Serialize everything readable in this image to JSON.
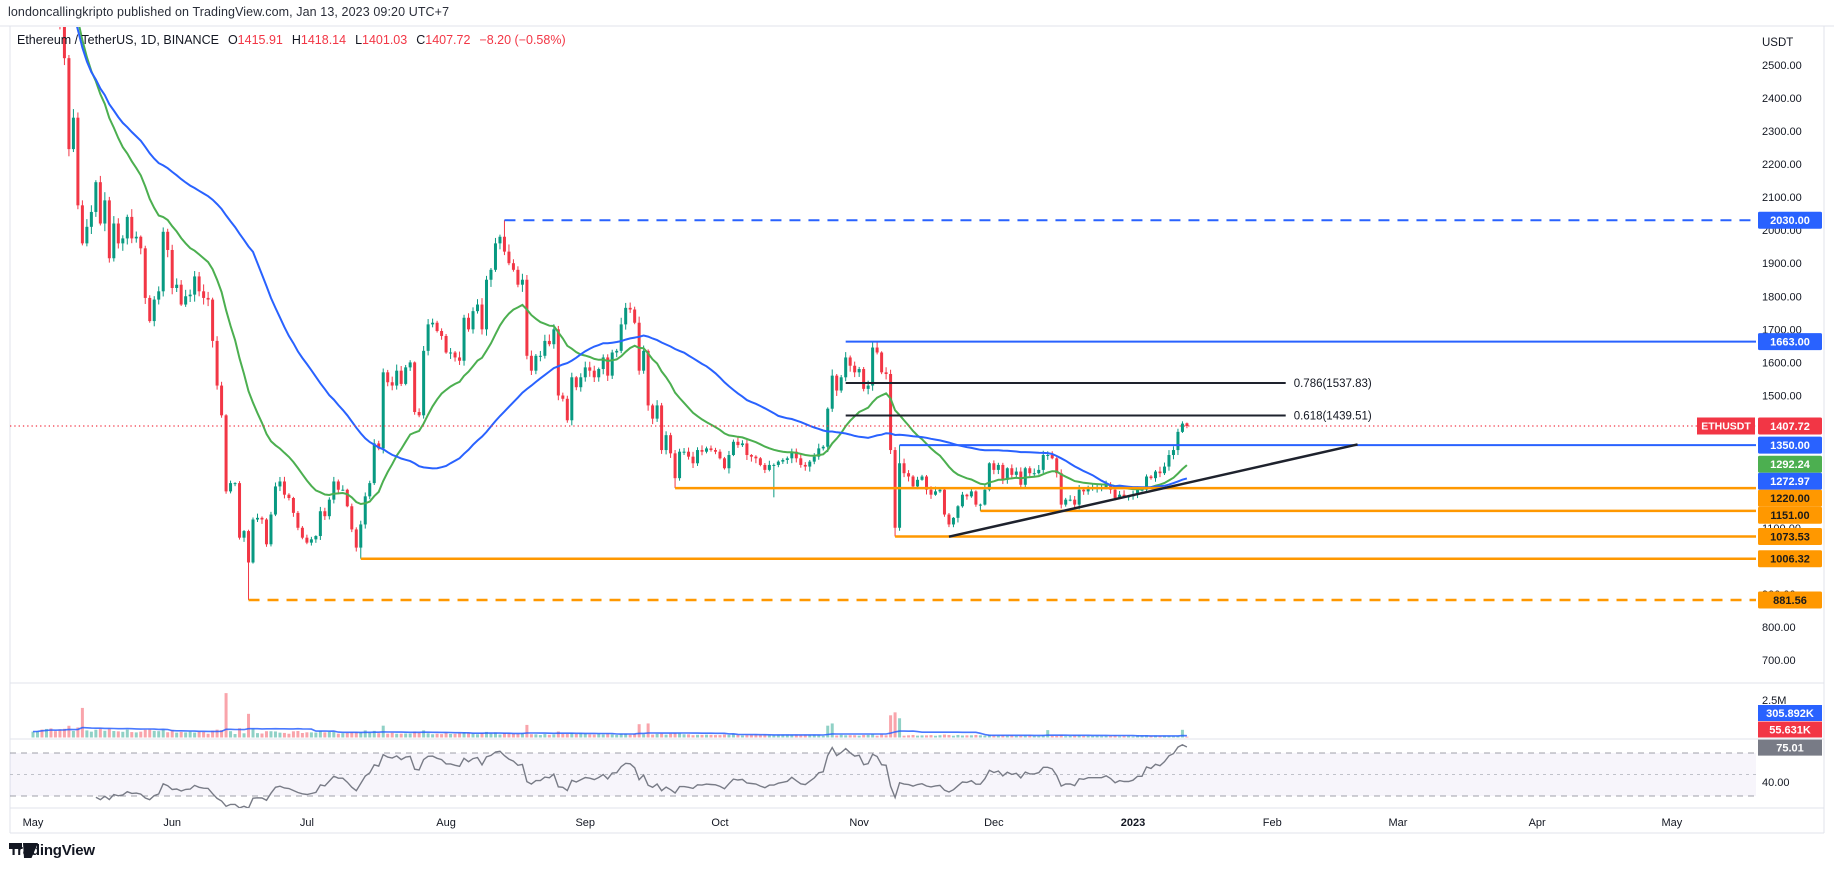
{
  "page": {
    "publisher_line": "londoncallingkripto published on TradingView.com, Jan 13, 2023 09:20 UTC+7",
    "footer_logo_text": "TradingView"
  },
  "legend": {
    "symbol_line": "Ethereum / TetherUS, 1D, BINANCE",
    "o_label": "O",
    "o_value": "1415.91",
    "h_label": "H",
    "h_value": "1418.14",
    "l_label": "L",
    "l_value": "1401.03",
    "c_label": "C",
    "c_value": "1407.72",
    "change_value": "−8.20 (−0.58%)"
  },
  "colors": {
    "up": "#089981",
    "down": "#f23645",
    "ma_fast": "#4caf50",
    "ma_slow": "#2962ff",
    "volume_ma": "#2962ff",
    "ray_blue": "#2962ff",
    "ray_orange": "#ff9800",
    "drawing_black": "#1e222d",
    "price_line": "#f23645",
    "axis_text": "#131722",
    "divider": "#e0e3eb",
    "rsi_line": "#787b86",
    "rsi_band": "#7e57c2",
    "rsi_label_bg": "#787b86"
  },
  "price_axis": {
    "currency": "USDT",
    "tick_min": 700,
    "tick_max": 2500,
    "tick_step": 100,
    "labels": [
      {
        "text": "2030.00",
        "price": 2030.0,
        "bg": "#2962ff",
        "fg": "#ffffff"
      },
      {
        "text": "1663.00",
        "price": 1663.0,
        "bg": "#2962ff",
        "fg": "#ffffff"
      },
      {
        "text": "1407.72",
        "price": 1407.72,
        "bg": "#f23645",
        "fg": "#ffffff",
        "tag": "ETHUSDT"
      },
      {
        "text": "1350.00",
        "price": 1350.0,
        "bg": "#2962ff",
        "fg": "#ffffff"
      },
      {
        "text": "1292.24",
        "price": 1292.24,
        "bg": "#4caf50",
        "fg": "#ffffff"
      },
      {
        "text": "1272.97",
        "price": 1272.97,
        "bg": "#2962ff",
        "fg": "#ffffff"
      },
      {
        "text": "1220.00",
        "price": 1220.0,
        "bg": "#ff9800",
        "fg": "#1b1b1b"
      },
      {
        "text": "1151.00",
        "price": 1151.0,
        "bg": "#ff9800",
        "fg": "#1b1b1b"
      },
      {
        "text": "1073.53",
        "price": 1073.53,
        "bg": "#ff9800",
        "fg": "#1b1b1b"
      },
      {
        "text": "1006.32",
        "price": 1006.32,
        "bg": "#ff9800",
        "fg": "#1b1b1b"
      },
      {
        "text": "881.56",
        "price": 881.56,
        "bg": "#ff9800",
        "fg": "#1b1b1b"
      }
    ]
  },
  "time_axis": {
    "labels": [
      {
        "text": "May",
        "day": 0,
        "emphasis": false
      },
      {
        "text": "Jun",
        "day": 31,
        "emphasis": false
      },
      {
        "text": "Jul",
        "day": 61,
        "emphasis": false
      },
      {
        "text": "Aug",
        "day": 92,
        "emphasis": false
      },
      {
        "text": "Sep",
        "day": 123,
        "emphasis": false
      },
      {
        "text": "Oct",
        "day": 153,
        "emphasis": false
      },
      {
        "text": "Nov",
        "day": 184,
        "emphasis": false
      },
      {
        "text": "Dec",
        "day": 214,
        "emphasis": false
      },
      {
        "text": "2023",
        "day": 245,
        "emphasis": true
      },
      {
        "text": "Feb",
        "day": 276,
        "emphasis": false
      },
      {
        "text": "Mar",
        "day": 304,
        "emphasis": false
      },
      {
        "text": "Apr",
        "day": 335,
        "emphasis": false
      },
      {
        "text": "May",
        "day": 365,
        "emphasis": false
      }
    ]
  },
  "chart_data": {
    "type": "candlestick",
    "symbol": "ETHUSDT",
    "exchange": "BINANCE",
    "interval": "1D",
    "title": "Ethereum / TetherUS, 1D, BINANCE",
    "ylabel": "USDT",
    "ylim": [
      700,
      2500
    ],
    "start_date": "2022-05-01",
    "end_date": "2023-01-13",
    "current_ohlc": {
      "open": 1415.91,
      "high": 1418.14,
      "low": 1401.03,
      "close": 1407.72,
      "change": -8.2,
      "change_pct": -0.58
    },
    "first_open": 2780,
    "closes": [
      2830,
      2855,
      2780,
      2940,
      2750,
      2690,
      2635,
      2520,
      2245,
      2340,
      2075,
      1960,
      2010,
      2055,
      2145,
      2020,
      2090,
      1915,
      2020,
      1960,
      1975,
      2040,
      1975,
      1980,
      1945,
      1795,
      1725,
      1790,
      1815,
      1995,
      1940,
      1825,
      1835,
      1775,
      1800,
      1805,
      1860,
      1815,
      1795,
      1790,
      1665,
      1530,
      1440,
      1210,
      1235,
      1235,
      1070,
      1090,
      995,
      1125,
      1130,
      1125,
      1050,
      1140,
      1225,
      1240,
      1200,
      1190,
      1145,
      1100,
      1070,
      1055,
      1065,
      1075,
      1150,
      1135,
      1185,
      1240,
      1215,
      1215,
      1165,
      1095,
      1040,
      1110,
      1195,
      1235,
      1355,
      1340,
      1570,
      1540,
      1530,
      1575,
      1535,
      1585,
      1600,
      1450,
      1440,
      1635,
      1715,
      1720,
      1695,
      1680,
      1630,
      1630,
      1615,
      1605,
      1735,
      1700,
      1755,
      1775,
      1700,
      1850,
      1880,
      1960,
      1980,
      1935,
      1900,
      1880,
      1835,
      1850,
      1620,
      1575,
      1620,
      1620,
      1665,
      1655,
      1700,
      1500,
      1490,
      1425,
      1555,
      1525,
      1555,
      1585,
      1575,
      1555,
      1580,
      1615,
      1560,
      1630,
      1635,
      1715,
      1765,
      1760,
      1720,
      1575,
      1635,
      1470,
      1430,
      1470,
      1335,
      1380,
      1325,
      1250,
      1330,
      1330,
      1315,
      1295,
      1335,
      1330,
      1340,
      1335,
      1330,
      1310,
      1280,
      1320,
      1360,
      1350,
      1355,
      1320,
      1315,
      1310,
      1290,
      1275,
      1290,
      1290,
      1300,
      1305,
      1310,
      1330,
      1310,
      1290,
      1285,
      1300,
      1315,
      1340,
      1345,
      1460,
      1560,
      1515,
      1555,
      1615,
      1590,
      1570,
      1580,
      1520,
      1530,
      1645,
      1630,
      1570,
      1565,
      1335,
      1100,
      1295,
      1265,
      1255,
      1225,
      1245,
      1255,
      1215,
      1200,
      1210,
      1215,
      1140,
      1110,
      1130,
      1165,
      1200,
      1195,
      1210,
      1170,
      1170,
      1215,
      1295,
      1275,
      1290,
      1245,
      1280,
      1260,
      1270,
      1230,
      1280,
      1265,
      1265,
      1275,
      1320,
      1320,
      1310,
      1265,
      1170,
      1185,
      1185,
      1170,
      1215,
      1210,
      1220,
      1220,
      1220,
      1220,
      1230,
      1215,
      1190,
      1200,
      1195,
      1195,
      1200,
      1215,
      1215,
      1255,
      1250,
      1270,
      1265,
      1285,
      1320,
      1335,
      1390,
      1415,
      1407.72
    ],
    "extremes_overrides": {
      "48": {
        "low": 881.56
      },
      "73": {
        "low": 1006.32
      },
      "105": {
        "high": 2030.0
      },
      "143": {
        "low": 1220.0
      },
      "165": {
        "low": 1192
      },
      "187": {
        "high": 1663.0
      },
      "192": {
        "low": 1073.53
      },
      "193": {
        "high": 1350.0
      },
      "211": {
        "low": 1151.0
      },
      "257": {
        "open": 1415.91,
        "high": 1418.14,
        "low": 1401.03,
        "close": 1407.72
      }
    },
    "volume_overrides": {
      "11": 2000000,
      "43": 3000000,
      "48": 1600000,
      "78": 800000,
      "110": 850000,
      "135": 900000,
      "137": 950000,
      "177": 800000,
      "178": 950000,
      "191": 1500000,
      "192": 1700000,
      "193": 1300000,
      "226": 500000,
      "256": 520000,
      "257": 55631
    },
    "indicators": {
      "ma_fast": {
        "type": "EMA",
        "length": 21,
        "color": "#4caf50",
        "last_value": 1292.24
      },
      "ma_slow": {
        "type": "SMA",
        "length": 50,
        "color": "#2962ff",
        "last_value": 1272.97
      },
      "volume_ma": {
        "type": "SMA",
        "length": 20,
        "color": "#2962ff",
        "last_value_label": "305.892K"
      },
      "volume_current_label": "55.631K",
      "rsi": {
        "length": 14,
        "color": "#787b86",
        "last_value": 75.01,
        "last_value_label": "75.01",
        "upper_band": 70,
        "lower_band": 30,
        "middle_band": 50
      }
    },
    "volume_axis_tick": "2.5M",
    "rsi_axis_tick": "40.00"
  },
  "drawings": {
    "horizontal_rays": [
      {
        "price": 2030.0,
        "start_day": 105,
        "color": "#2962ff",
        "dash": true
      },
      {
        "price": 1663.0,
        "start_day": 181,
        "color": "#2962ff",
        "dash": false
      },
      {
        "price": 1350.0,
        "start_day": 193,
        "color": "#2962ff",
        "dash": false
      },
      {
        "price": 1220.0,
        "start_day": 143,
        "color": "#ff9800",
        "dash": false
      },
      {
        "price": 1151.0,
        "start_day": 211,
        "color": "#ff9800",
        "dash": false
      },
      {
        "price": 1073.53,
        "start_day": 192,
        "color": "#ff9800",
        "dash": false
      },
      {
        "price": 1006.32,
        "start_day": 73,
        "color": "#ff9800",
        "dash": false
      },
      {
        "price": 881.56,
        "start_day": 48,
        "color": "#ff9800",
        "dash": true
      }
    ],
    "fib_levels": [
      {
        "label": "0.786(1537.83)",
        "price": 1537.83,
        "start_day": 181,
        "end_day": 279
      },
      {
        "label": "0.618(1439.51)",
        "price": 1439.51,
        "start_day": 181,
        "end_day": 279
      }
    ],
    "trendline": {
      "points": [
        {
          "day": 204,
          "price": 1073
        },
        {
          "day": 295,
          "price": 1352
        }
      ]
    },
    "current_price_line": {
      "price": 1407.72
    }
  }
}
